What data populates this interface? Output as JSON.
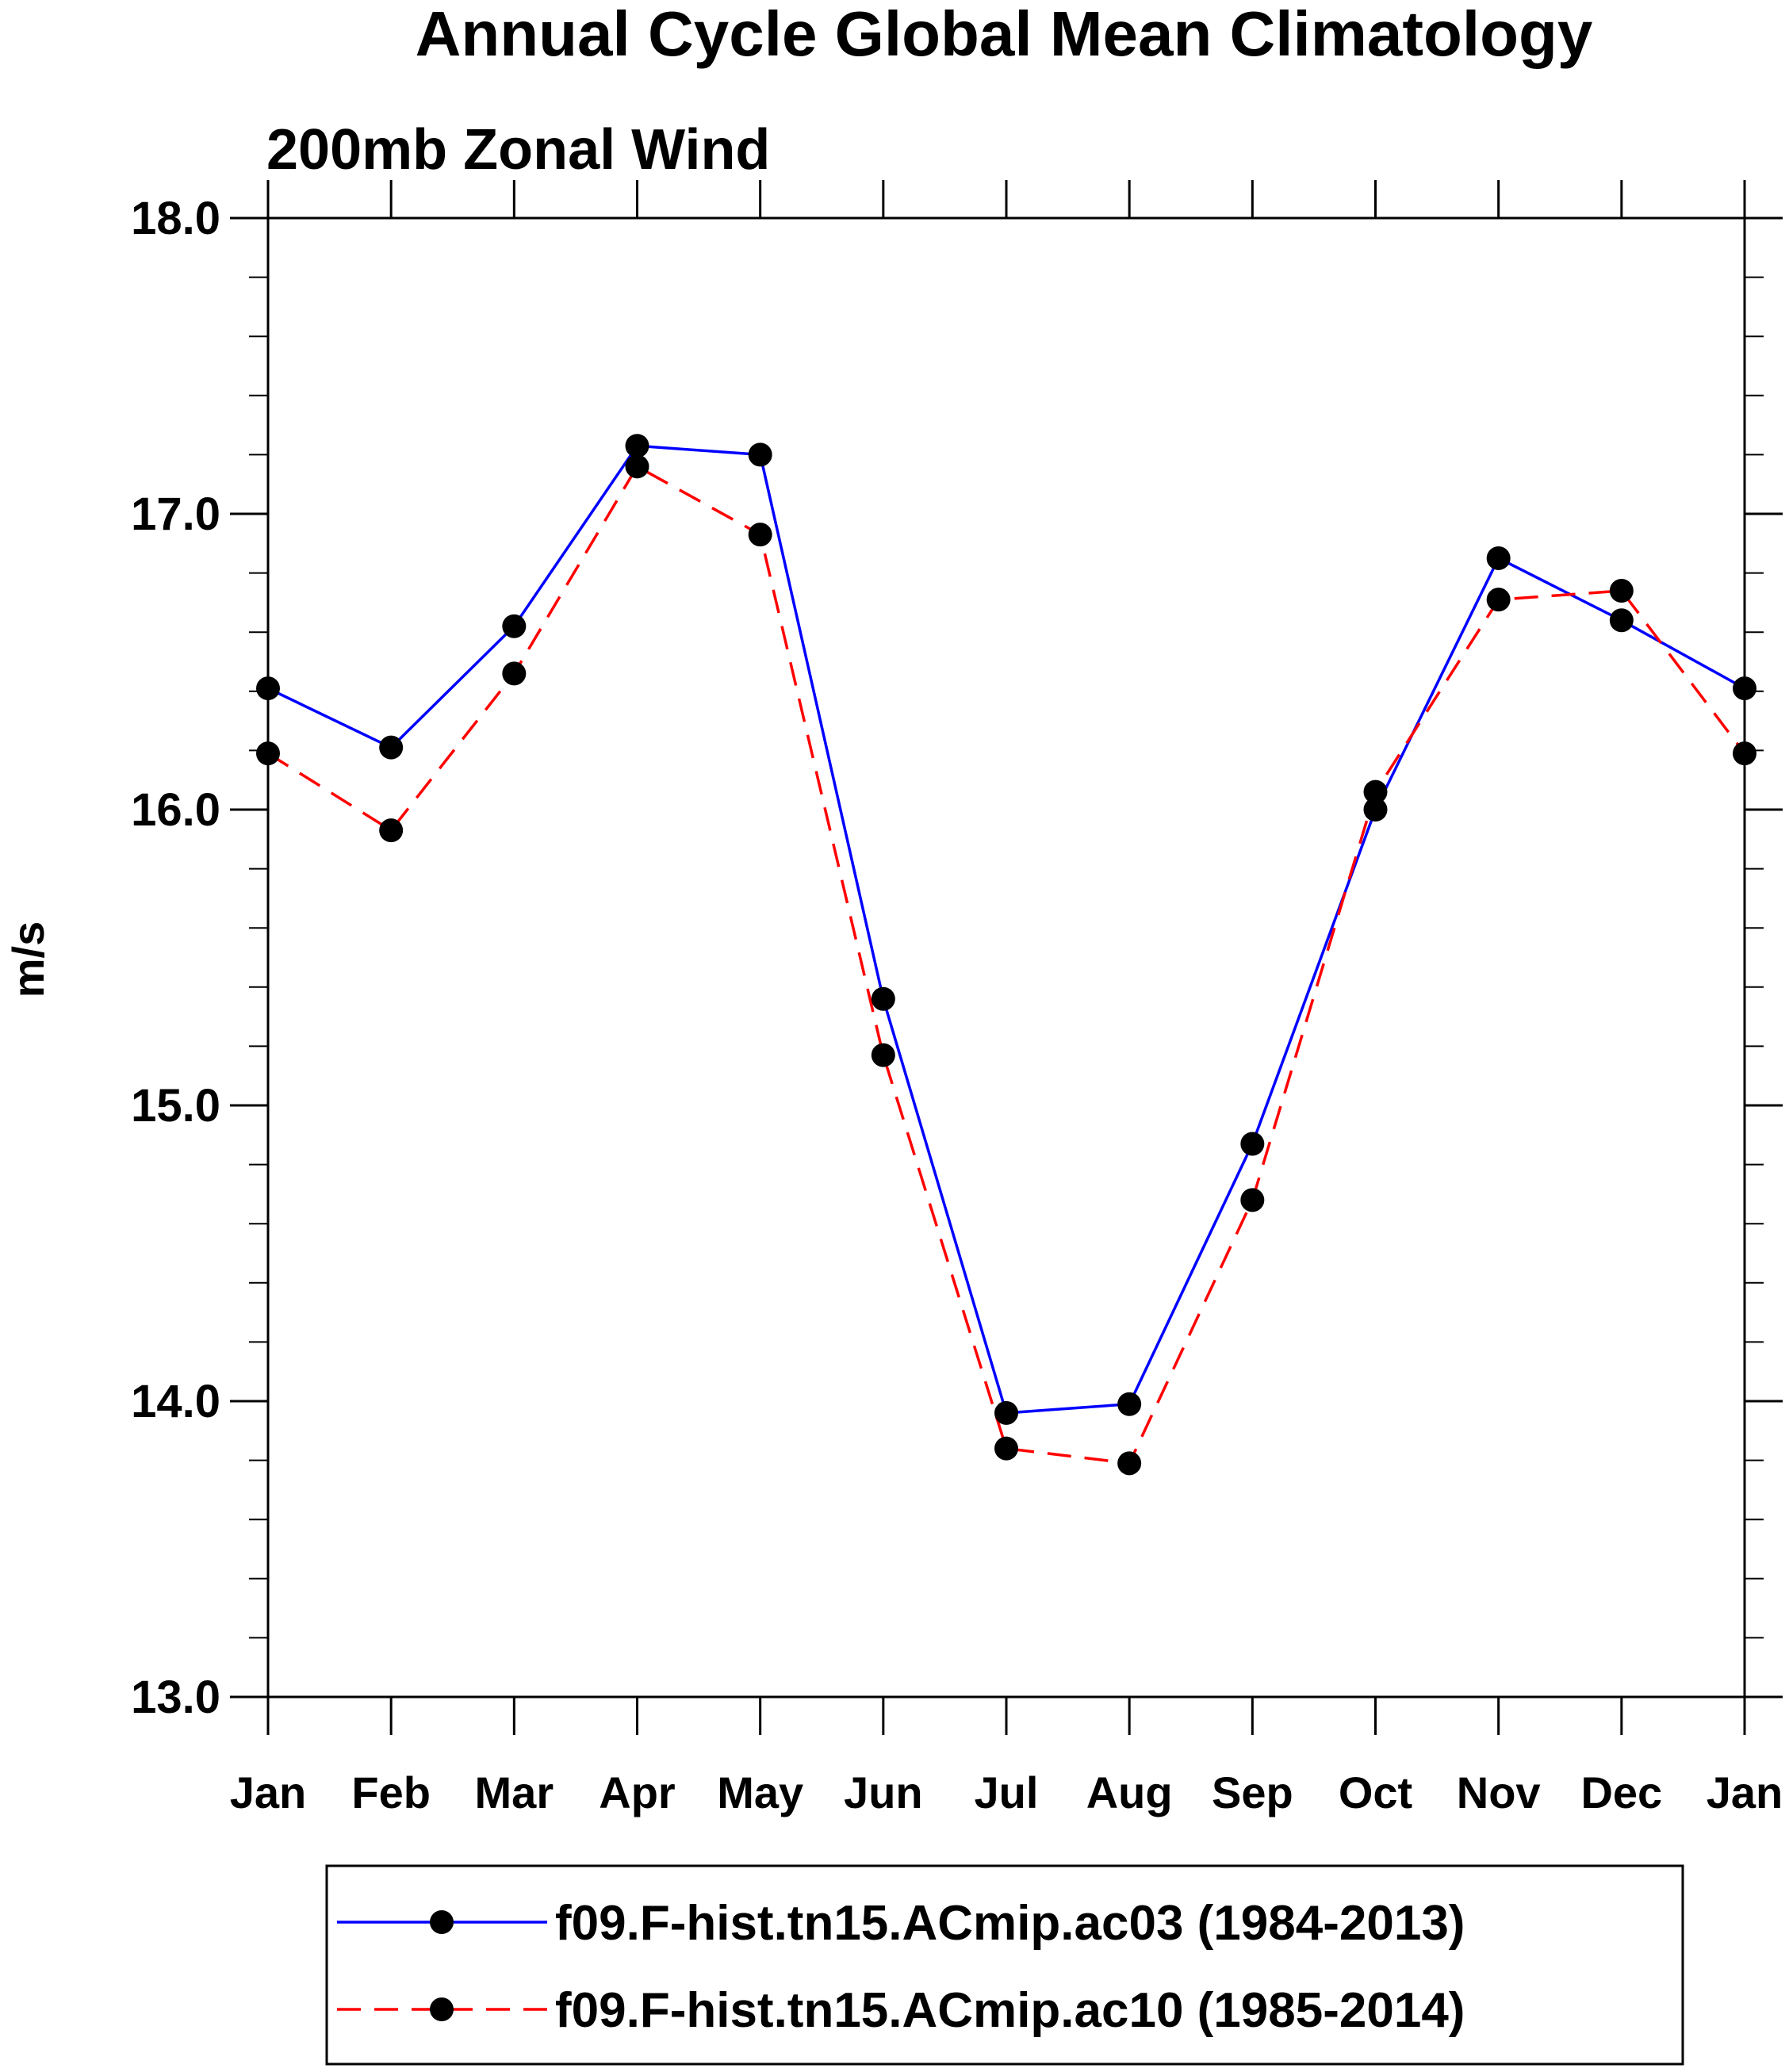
{
  "chart_data": {
    "type": "line",
    "title": "Annual Cycle Global Mean Climatology",
    "subtitle": "200mb Zonal Wind",
    "xlabel": "",
    "ylabel": "m/s",
    "categories": [
      "Jan",
      "Feb",
      "Mar",
      "Apr",
      "May",
      "Jun",
      "Jul",
      "Aug",
      "Sep",
      "Oct",
      "Nov",
      "Dec",
      "Jan"
    ],
    "ylim": [
      13.0,
      18.0
    ],
    "yticks": [
      {
        "value": 13.0,
        "label": "13.0"
      },
      {
        "value": 14.0,
        "label": "14.0"
      },
      {
        "value": 15.0,
        "label": "15.0"
      },
      {
        "value": 16.0,
        "label": "16.0"
      },
      {
        "value": 17.0,
        "label": "17.0"
      },
      {
        "value": 18.0,
        "label": "18.0"
      }
    ],
    "minor_tick_step": 0.2,
    "grid": false,
    "legend_position": "bottom",
    "series": [
      {
        "name": "f09.F-hist.tn15.ACmip.ac03 (1984-2013)",
        "color": "#0000ff",
        "dash": "solid",
        "marker": "filled-circle",
        "values": [
          16.41,
          16.21,
          16.62,
          17.23,
          17.2,
          15.36,
          13.96,
          13.99,
          14.87,
          16.0,
          16.85,
          16.64,
          16.41
        ]
      },
      {
        "name": "f09.F-hist.tn15.ACmip.ac10 (1985-2014)",
        "color": "#ff0000",
        "dash": "dashed",
        "marker": "filled-circle",
        "values": [
          16.19,
          15.93,
          16.46,
          17.16,
          16.93,
          15.17,
          13.84,
          13.79,
          14.68,
          16.06,
          16.71,
          16.74,
          16.19
        ]
      }
    ]
  }
}
